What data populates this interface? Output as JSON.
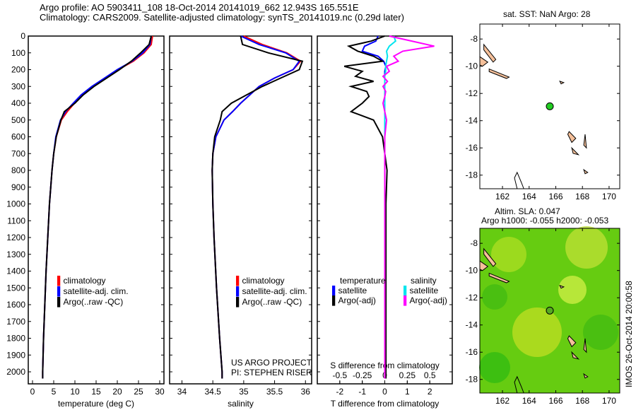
{
  "header": {
    "line1": "Argo profile: AO 5903411_108 18-Oct-2014 20141019_662 12.943S 165.551E",
    "line2": "Climatology: CARS2009. Satellite-adjusted climatology: synTS_20141019.nc (0.29d later)"
  },
  "colors": {
    "clim": "#ff0000",
    "sat": "#0000ff",
    "argo": "#000000",
    "s_sat": "#00e5ee",
    "s_argo": "#ff00ff",
    "land": "#f5c09a",
    "float": "#22cc22"
  },
  "chart_data": [
    {
      "type": "line",
      "name": "temperature",
      "xlabel": "temperature (deg C)",
      "xlim": [
        -1,
        31
      ],
      "ylim": [
        2070,
        0
      ],
      "xticks": [
        0,
        5,
        10,
        15,
        20,
        25,
        30
      ],
      "yticks": [
        0,
        100,
        200,
        300,
        400,
        500,
        600,
        700,
        800,
        900,
        1000,
        1100,
        1200,
        1300,
        1400,
        1500,
        1600,
        1700,
        1800,
        1900,
        2000
      ],
      "depth": [
        0,
        50,
        100,
        150,
        200,
        250,
        300,
        350,
        400,
        450,
        500,
        600,
        700,
        800,
        900,
        1000,
        1200,
        1400,
        1600,
        1800,
        2000,
        2040
      ],
      "series": [
        {
          "name": "climatology",
          "values": [
            28.3,
            28,
            26.3,
            23.8,
            20.2,
            17.2,
            14.2,
            11.8,
            9.9,
            8.2,
            6.8,
            5.6,
            5.0,
            4.6,
            4.3,
            4.0,
            3.6,
            3.2,
            2.9,
            2.6,
            2.4,
            2.4
          ]
        },
        {
          "name": "satellite-adj. clim.",
          "values": [
            28.0,
            27.7,
            26.0,
            23.5,
            20.0,
            17.0,
            14.0,
            11.5,
            9.6,
            7.8,
            6.6,
            5.5,
            5.0,
            4.6,
            4.3,
            4.0,
            3.6,
            3.2,
            2.9,
            2.6,
            2.4,
            2.4
          ]
        },
        {
          "name": "Argo(..raw -QC)",
          "values": [
            28.0,
            27.5,
            25.5,
            23.3,
            20.5,
            17.5,
            14.5,
            12.0,
            10.0,
            7.5,
            6.7,
            5.6,
            5.0,
            4.6,
            4.3,
            4.0,
            3.6,
            3.2,
            2.9,
            2.6,
            2.4,
            2.4
          ]
        }
      ]
    },
    {
      "type": "line",
      "name": "salinity",
      "xlabel": "salinity",
      "xlim": [
        33.8,
        36.1
      ],
      "ylim": [
        2070,
        0
      ],
      "xticks": [
        34,
        34.5,
        35,
        35.5,
        36
      ],
      "depth": [
        0,
        50,
        100,
        150,
        200,
        250,
        300,
        350,
        400,
        450,
        500,
        600,
        700,
        800,
        1000,
        1200,
        1500,
        1800,
        2000,
        2040
      ],
      "series": [
        {
          "name": "climatology",
          "values": [
            35.0,
            35.3,
            35.7,
            35.92,
            35.8,
            35.5,
            35.25,
            35.1,
            34.95,
            34.82,
            34.68,
            34.55,
            34.5,
            34.49,
            34.5,
            34.52,
            34.56,
            34.61,
            34.65,
            34.65
          ]
        },
        {
          "name": "satellite-adj. clim.",
          "values": [
            34.95,
            35.25,
            35.68,
            35.9,
            35.8,
            35.5,
            35.25,
            35.1,
            34.95,
            34.82,
            34.68,
            34.55,
            34.5,
            34.49,
            34.5,
            34.52,
            34.56,
            34.61,
            34.65,
            34.65
          ]
        },
        {
          "name": "Argo(..raw -QC)",
          "values": [
            34.95,
            34.98,
            35.4,
            35.95,
            35.9,
            35.6,
            35.3,
            35.05,
            34.8,
            34.65,
            34.62,
            34.53,
            34.5,
            34.49,
            34.5,
            34.52,
            34.56,
            34.61,
            34.65,
            34.65
          ]
        }
      ],
      "annotations": [
        "US ARGO PROJECT",
        "PI: STEPHEN RISER"
      ]
    },
    {
      "type": "line",
      "name": "difference",
      "xlabel": "T difference from climatology",
      "x2label": "S difference from climatology",
      "xlim": [
        -3,
        3
      ],
      "x2lim": [
        -0.75,
        0.75
      ],
      "xticks": [
        -2,
        -1,
        0,
        1,
        2
      ],
      "x2ticks": [
        "-0.5",
        "-0.25",
        "0",
        "0.25",
        "0.5"
      ],
      "x2tickvals": [
        -0.5,
        -0.25,
        0,
        0.25,
        0.5
      ],
      "depth": [
        0,
        30,
        60,
        90,
        120,
        150,
        180,
        210,
        240,
        270,
        300,
        330,
        360,
        400,
        450,
        500,
        600,
        800,
        1000,
        1500,
        2000,
        2040
      ],
      "series": [
        {
          "name": "temperature satellite",
          "axis": "T",
          "values": [
            -0.3,
            -0.4,
            -0.9,
            -1.0,
            -0.3,
            -0.05,
            0.05,
            0,
            0,
            0,
            0,
            0,
            0,
            0,
            0,
            0,
            0,
            0,
            0,
            0,
            0,
            0
          ]
        },
        {
          "name": "temperature Argo(-adj)",
          "axis": "T",
          "values": [
            0,
            -0.6,
            -1.6,
            -1.2,
            -0.5,
            -0.1,
            -1.8,
            -1.0,
            -1.3,
            -0.5,
            -1.5,
            -0.8,
            -0.7,
            -1.0,
            -1.5,
            -0.5,
            -0.1,
            0.1,
            0.05,
            0.05,
            0.05,
            0.05
          ]
        },
        {
          "name": "salinity satellite",
          "axis": "S",
          "values": [
            0.1,
            0.12,
            0.05,
            0.02,
            0.03,
            0.02,
            0.01,
            0.01,
            0,
            0,
            0,
            0,
            0,
            0,
            0,
            0,
            0,
            0,
            0,
            0,
            0,
            0
          ]
        },
        {
          "name": "salinity Argo(-adj)",
          "axis": "S",
          "values": [
            0.05,
            0.3,
            0.55,
            0.2,
            0.1,
            0.15,
            0.02,
            0.05,
            -0.02,
            0.03,
            -0.02,
            0.01,
            0,
            -0.02,
            0,
            0.02,
            0,
            0,
            0,
            0,
            0,
            0
          ]
        }
      ],
      "legend": {
        "temperature": "temperature",
        "salinity": "salinity",
        "satellite": "satellite",
        "argo": "Argo(-adj)"
      }
    }
  ],
  "legend": {
    "clim": "climatology",
    "sat": "satellite-adj. clim.",
    "argo": "Argo(..raw -QC)"
  },
  "maps": {
    "sst_title": "sat. SST: NaN Argo: 28",
    "sla_title1": "Altim. SLA: 0.047",
    "sla_title2": "Argo h1000: -0.055 h2000: -0.053",
    "lon_ticks": [
      "162",
      "164",
      "166",
      "168",
      "170"
    ],
    "lat_ticks1": [
      "-8",
      "-10",
      "-12",
      "-14",
      "-16",
      "-18"
    ],
    "lat_ticks2": [
      "-8",
      "-10",
      "-12",
      "-14",
      "-16",
      "-18"
    ],
    "float_lon": 165.551,
    "float_lat": -12.943
  },
  "side_label": "IMOS 26-Oct-2014 20:00:58"
}
